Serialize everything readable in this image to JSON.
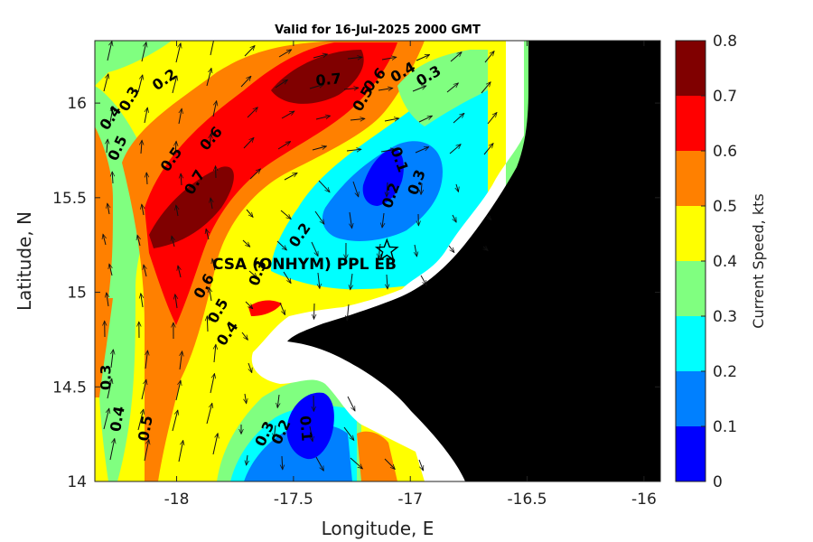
{
  "chart_data": {
    "type": "heatmap",
    "title": "Valid for 16-Jul-2025 2000 GMT",
    "xlabel": "Longitude, E",
    "ylabel": "Latitude, N",
    "xlim": [
      -18.35,
      -15.93
    ],
    "ylim": [
      14.0,
      16.33
    ],
    "x_ticks": [
      "-18",
      "-17.5",
      "-17",
      "-16.5",
      "-16"
    ],
    "y_ticks": [
      "14",
      "14.5",
      "15",
      "15.5",
      "16"
    ],
    "colorbar": {
      "label": "Current Speed, kts",
      "ticks": [
        "0",
        "0.1",
        "0.2",
        "0.3",
        "0.4",
        "0.5",
        "0.6",
        "0.7",
        "0.8"
      ],
      "levels": [
        0,
        0.1,
        0.2,
        0.3,
        0.4,
        0.5,
        0.6,
        0.7,
        0.8
      ],
      "colors": [
        "#0000ff",
        "#0080ff",
        "#00ffff",
        "#80ff80",
        "#ffff00",
        "#ff8000",
        "#ff0000",
        "#800000"
      ]
    },
    "land_color": "#000000",
    "station": {
      "label": "CSA (ONHYM) PPL EB",
      "lon": -17.1,
      "lat": 15.22
    },
    "contour_labels": [
      {
        "text": "0.2",
        "lon": -18.05,
        "lat": 16.12,
        "rot": -35
      },
      {
        "text": "0.3",
        "lon": -18.2,
        "lat": 16.02,
        "rot": -60
      },
      {
        "text": "0.4",
        "lon": -18.28,
        "lat": 15.92,
        "rot": -55
      },
      {
        "text": "0.5",
        "lon": -18.25,
        "lat": 15.76,
        "rot": -65
      },
      {
        "text": "0.5",
        "lon": -18.02,
        "lat": 15.7,
        "rot": -55
      },
      {
        "text": "0.6",
        "lon": -17.85,
        "lat": 15.81,
        "rot": -50
      },
      {
        "text": "0.7",
        "lon": -17.92,
        "lat": 15.58,
        "rot": -60
      },
      {
        "text": "0.7",
        "lon": -17.35,
        "lat": 16.12,
        "rot": -5
      },
      {
        "text": "0.6",
        "lon": -17.15,
        "lat": 16.12,
        "rot": -50
      },
      {
        "text": "0.5",
        "lon": -17.2,
        "lat": 16.02,
        "rot": -60
      },
      {
        "text": "0.4",
        "lon": -17.03,
        "lat": 16.16,
        "rot": -30
      },
      {
        "text": "0.3",
        "lon": -16.92,
        "lat": 16.14,
        "rot": -30
      },
      {
        "text": "0.1",
        "lon": -17.05,
        "lat": 15.7,
        "rot": 70
      },
      {
        "text": "0.2",
        "lon": -17.08,
        "lat": 15.51,
        "rot": -70
      },
      {
        "text": "0.3",
        "lon": -16.97,
        "lat": 15.58,
        "rot": -70
      },
      {
        "text": "0.2",
        "lon": -17.47,
        "lat": 15.3,
        "rot": -55
      },
      {
        "text": "0.3",
        "lon": -17.65,
        "lat": 15.1,
        "rot": -70
      },
      {
        "text": "0.6",
        "lon": -17.88,
        "lat": 15.03,
        "rot": -60
      },
      {
        "text": "0.5",
        "lon": -17.82,
        "lat": 14.9,
        "rot": -60
      },
      {
        "text": "0.4",
        "lon": -17.78,
        "lat": 14.78,
        "rot": -55
      },
      {
        "text": "0.3",
        "lon": -18.3,
        "lat": 14.55,
        "rot": -90
      },
      {
        "text": "0.4",
        "lon": -18.25,
        "lat": 14.33,
        "rot": -80
      },
      {
        "text": "0.5",
        "lon": -18.13,
        "lat": 14.28,
        "rot": -80
      },
      {
        "text": "0.3",
        "lon": -17.62,
        "lat": 14.25,
        "rot": -65
      },
      {
        "text": "0.2",
        "lon": -17.55,
        "lat": 14.26,
        "rot": -65
      },
      {
        "text": "0.1",
        "lon": -17.45,
        "lat": 14.28,
        "rot": 85
      }
    ]
  }
}
